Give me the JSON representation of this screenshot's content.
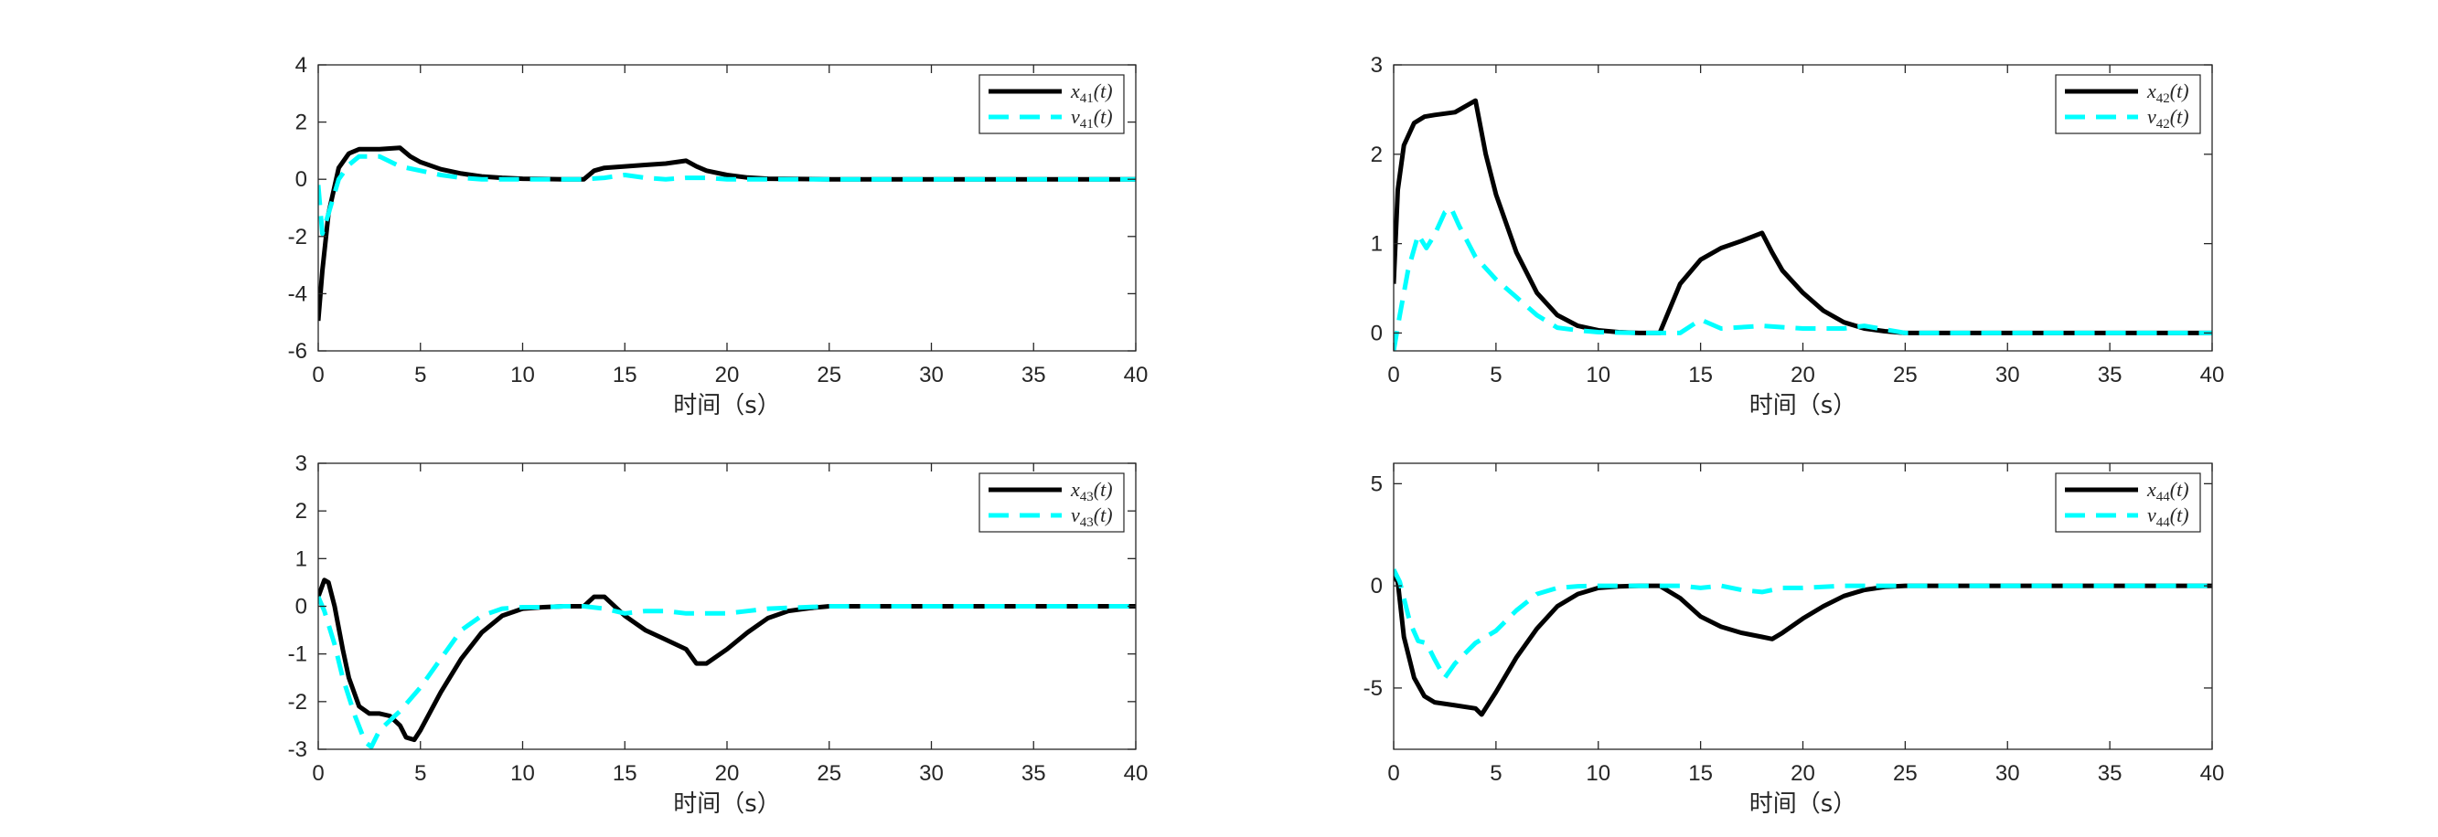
{
  "chart_data": [
    {
      "id": "p41",
      "type": "line",
      "xlabel": "时间（s）",
      "xlim": [
        0,
        40
      ],
      "ylim": [
        -6,
        4
      ],
      "xticks": [
        0,
        5,
        10,
        15,
        20,
        25,
        30,
        35,
        40
      ],
      "yticks": [
        -6,
        -4,
        -2,
        0,
        2,
        4
      ],
      "legend": "top-right",
      "series": [
        {
          "name": "x41(t)",
          "color": "#000000",
          "dash": "solid",
          "x": [
            0,
            0.2,
            0.5,
            1,
            1.5,
            2,
            3,
            4,
            4.5,
            5,
            6,
            7,
            8,
            9,
            10,
            11,
            12,
            13,
            13.5,
            14,
            15,
            16,
            17,
            18,
            18.5,
            19,
            20,
            21,
            22,
            25,
            30,
            35,
            40
          ],
          "y": [
            -4.95,
            -3.2,
            -1.2,
            0.4,
            0.9,
            1.05,
            1.05,
            1.1,
            0.8,
            0.6,
            0.35,
            0.2,
            0.1,
            0.05,
            0.02,
            0.01,
            0,
            0,
            0.3,
            0.4,
            0.45,
            0.5,
            0.55,
            0.65,
            0.45,
            0.3,
            0.15,
            0.06,
            0.02,
            0,
            0,
            0,
            0
          ]
        },
        {
          "name": "v41(t)",
          "color": "#00ffff",
          "dash": "dashed",
          "x": [
            0,
            0.2,
            0.5,
            1,
            1.5,
            2,
            3,
            4,
            5,
            6,
            7,
            8,
            10,
            12,
            13,
            14,
            15,
            16,
            17,
            18,
            19,
            20,
            22,
            25,
            30,
            35,
            40
          ],
          "y": [
            -0.2,
            -1.9,
            -1.2,
            0,
            0.5,
            0.8,
            0.8,
            0.45,
            0.3,
            0.15,
            0.05,
            0,
            0,
            0,
            0,
            0.05,
            0.15,
            0.05,
            0,
            0.05,
            0.05,
            0,
            0,
            0,
            0,
            0,
            0
          ]
        }
      ]
    },
    {
      "id": "p42",
      "type": "line",
      "xlabel": "时间（s）",
      "xlim": [
        0,
        40
      ],
      "ylim": [
        -0.2,
        3
      ],
      "xticks": [
        0,
        5,
        10,
        15,
        20,
        25,
        30,
        35,
        40
      ],
      "yticks": [
        0,
        1,
        2,
        3
      ],
      "legend": "top-right",
      "series": [
        {
          "name": "x42(t)",
          "color": "#000000",
          "dash": "solid",
          "x": [
            0,
            0.2,
            0.5,
            1,
            1.5,
            2,
            3,
            4,
            4.5,
            5,
            6,
            7,
            8,
            9,
            10,
            11,
            12,
            13,
            14,
            15,
            16,
            17,
            18,
            18.5,
            19,
            20,
            21,
            22,
            23,
            24,
            25,
            30,
            35,
            40
          ],
          "y": [
            0.55,
            1.6,
            2.1,
            2.35,
            2.42,
            2.44,
            2.47,
            2.6,
            2.0,
            1.55,
            0.9,
            0.45,
            0.2,
            0.08,
            0.03,
            0.01,
            0,
            0,
            0.55,
            0.82,
            0.95,
            1.03,
            1.12,
            0.9,
            0.7,
            0.45,
            0.25,
            0.12,
            0.05,
            0.02,
            0,
            0,
            0,
            0
          ]
        },
        {
          "name": "v42(t)",
          "color": "#00ffff",
          "dash": "dashed",
          "x": [
            0,
            0.3,
            0.7,
            1.2,
            1.6,
            2,
            2.5,
            2.8,
            3.2,
            4,
            5,
            6,
            7,
            8,
            9,
            10,
            12,
            14,
            15,
            16,
            18,
            20,
            22,
            23,
            25,
            30,
            35,
            40
          ],
          "y": [
            -0.2,
            0.2,
            0.7,
            1.1,
            0.95,
            1.1,
            1.35,
            1.4,
            1.2,
            0.85,
            0.6,
            0.4,
            0.2,
            0.06,
            0.03,
            0.01,
            0,
            0,
            0.15,
            0.05,
            0.08,
            0.05,
            0.05,
            0.08,
            0,
            0,
            0,
            0
          ]
        }
      ]
    },
    {
      "id": "p43",
      "type": "line",
      "xlabel": "时间（s）",
      "xlim": [
        0,
        40
      ],
      "ylim": [
        -3,
        3
      ],
      "xticks": [
        0,
        5,
        10,
        15,
        20,
        25,
        30,
        35,
        40
      ],
      "yticks": [
        -3,
        -2,
        -1,
        0,
        1,
        2,
        3
      ],
      "legend": "top-right",
      "series": [
        {
          "name": "x43(t)",
          "color": "#000000",
          "dash": "solid",
          "x": [
            0,
            0.3,
            0.5,
            0.8,
            1.2,
            1.5,
            2,
            2.5,
            3,
            3.5,
            4,
            4.3,
            4.7,
            5,
            5.5,
            6,
            7,
            8,
            9,
            10,
            11,
            12,
            13,
            13.5,
            14,
            15,
            16,
            17,
            18,
            18.5,
            19,
            20,
            21,
            22,
            23,
            24,
            25,
            30,
            35,
            40
          ],
          "y": [
            0.2,
            0.55,
            0.5,
            0,
            -0.9,
            -1.5,
            -2.1,
            -2.25,
            -2.25,
            -2.3,
            -2.5,
            -2.75,
            -2.8,
            -2.6,
            -2.2,
            -1.8,
            -1.1,
            -0.55,
            -0.2,
            -0.05,
            -0.02,
            0,
            0,
            0.2,
            0.2,
            -0.2,
            -0.5,
            -0.7,
            -0.9,
            -1.2,
            -1.2,
            -0.9,
            -0.55,
            -0.25,
            -0.1,
            -0.04,
            0,
            0,
            0,
            0
          ]
        },
        {
          "name": "v43(t)",
          "color": "#00ffff",
          "dash": "dashed",
          "x": [
            0,
            0.3,
            0.8,
            1.2,
            1.8,
            2.3,
            2.6,
            3,
            4,
            5,
            6,
            7,
            8,
            9,
            10,
            11,
            12,
            13,
            14,
            15,
            16,
            17,
            18,
            19,
            20,
            21,
            22,
            25,
            30,
            35,
            40
          ],
          "y": [
            0.2,
            -0.1,
            -0.8,
            -1.5,
            -2.3,
            -2.85,
            -2.95,
            -2.6,
            -2.2,
            -1.7,
            -1.1,
            -0.5,
            -0.2,
            -0.05,
            -0.02,
            -0.02,
            0,
            0,
            -0.05,
            -0.15,
            -0.1,
            -0.1,
            -0.15,
            -0.15,
            -0.15,
            -0.1,
            -0.05,
            0,
            0,
            0,
            0
          ]
        }
      ]
    },
    {
      "id": "p44",
      "type": "line",
      "xlabel": "时间（s）",
      "xlim": [
        0,
        40
      ],
      "ylim": [
        -8,
        6
      ],
      "xticks": [
        0,
        5,
        10,
        15,
        20,
        25,
        30,
        35,
        40
      ],
      "yticks": [
        -5,
        0,
        5
      ],
      "legend": "top-right",
      "series": [
        {
          "name": "x44(t)",
          "color": "#000000",
          "dash": "solid",
          "x": [
            0,
            0.2,
            0.5,
            1,
            1.5,
            2,
            3,
            4,
            4.3,
            5,
            6,
            7,
            8,
            9,
            10,
            11,
            12,
            13,
            14,
            15,
            16,
            17,
            18,
            18.5,
            19,
            20,
            21,
            22,
            23,
            24,
            25,
            30,
            35,
            40
          ],
          "y": [
            0.5,
            0.2,
            -2.5,
            -4.5,
            -5.4,
            -5.7,
            -5.85,
            -6.0,
            -6.3,
            -5.2,
            -3.5,
            -2.1,
            -1.0,
            -0.4,
            -0.1,
            -0.03,
            0,
            0,
            -0.6,
            -1.5,
            -2.0,
            -2.3,
            -2.5,
            -2.6,
            -2.3,
            -1.6,
            -1.0,
            -0.5,
            -0.2,
            -0.05,
            0,
            0,
            0,
            0
          ]
        },
        {
          "name": "v44(t)",
          "color": "#00ffff",
          "dash": "dashed",
          "x": [
            0,
            0.3,
            0.8,
            1.2,
            1.6,
            2,
            2.5,
            3,
            4,
            5,
            6,
            7,
            8,
            9,
            10,
            12,
            14,
            15,
            16,
            17,
            18,
            19,
            20,
            22,
            25,
            30,
            35,
            40
          ],
          "y": [
            0.8,
            0.2,
            -1.8,
            -2.7,
            -2.8,
            -3.6,
            -4.5,
            -3.8,
            -2.8,
            -2.2,
            -1.2,
            -0.4,
            -0.1,
            -0.02,
            0,
            0,
            0,
            -0.1,
            0,
            -0.2,
            -0.3,
            -0.1,
            -0.1,
            0,
            0,
            0,
            0,
            0
          ]
        }
      ]
    }
  ]
}
